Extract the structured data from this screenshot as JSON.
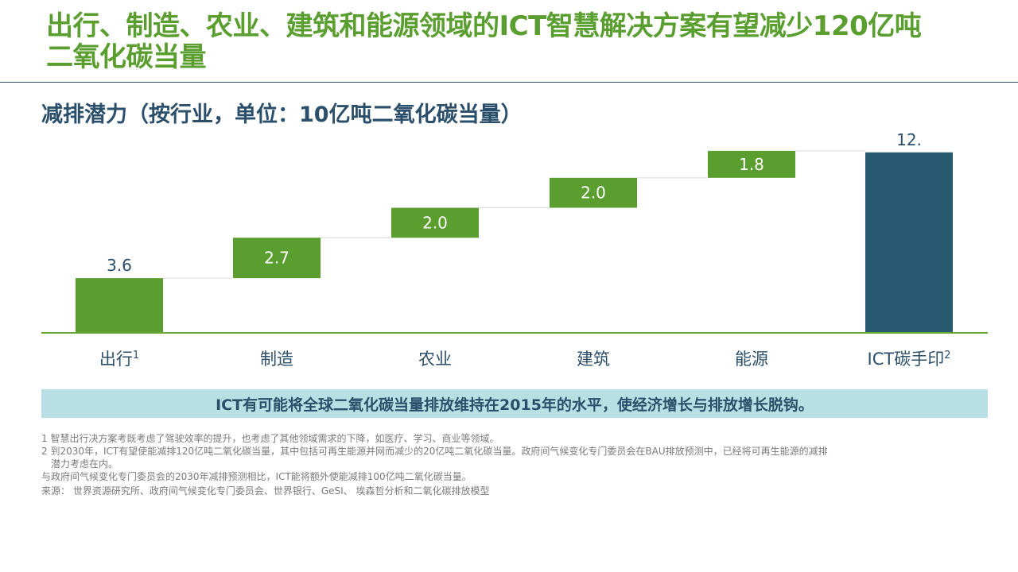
{
  "slide": {
    "title": "出行、制造、农业、建筑和能源领域的ICT智慧解决方案有望减少120亿吨二氧化碳当量",
    "subtitle": "减排潜力（按行业，单位：10亿吨二氧化碳当量）",
    "banner": "ICT有可能将全球二氧化碳当量排放维持在2015年的水平，使经济增长与排放增长脱钩。",
    "footnote_1": "1 智慧出行决方案考既考虑了驾驶效率的提升，也考虑了其他领域需求的下降，如医疗、学习、商业等领域。",
    "footnote_2_line1": "2 到2030年，ICT有望使能减排120亿吨二氧化碳当量，其中包括可再生能源并网而减少的20亿吨二氧化碳当量。政府间气候变化专门委员会在BAU排放预测中，已经将可再生能源的减排",
    "footnote_2_line2": "潜力考虑在内。",
    "footnote_3": "与政府间气候变化专门委员会的2030年减排预测相比，ICT能将额外使能减排100亿吨二氧化碳当量。",
    "source": "来源：  世界资源研究所、政府间气候变化专门委员会、世界银行、GeSI、 埃森哲分析和二氧化碳排放模型"
  },
  "chart_data": {
    "type": "bar",
    "variant": "waterfall",
    "categories": [
      "出行",
      "制造",
      "农业",
      "建筑",
      "能源",
      "ICT碳手印"
    ],
    "category_superscripts": [
      "1",
      "",
      "",
      "",
      "",
      "2"
    ],
    "values": [
      3.6,
      2.7,
      2.0,
      2.0,
      1.8,
      12.0
    ],
    "value_labels": [
      "3.6",
      "2.7",
      "2.0",
      "2.0",
      "1.8",
      "12."
    ],
    "bar_kinds": [
      "increment",
      "increment",
      "increment",
      "increment",
      "increment",
      "total"
    ],
    "label_positions": [
      "above",
      "inside",
      "inside",
      "inside",
      "inside",
      "above"
    ],
    "ylim": [
      0,
      12.2
    ],
    "grid": false,
    "legend": "none",
    "colors": {
      "increment": "#5a9e2f",
      "total": "#285a72",
      "axis": "#6aa83a",
      "connector": "#d9d9d9",
      "label_dark": "#2b4f6b",
      "label_inside": "#ffffff",
      "category_text": "#2b4f6b"
    }
  }
}
